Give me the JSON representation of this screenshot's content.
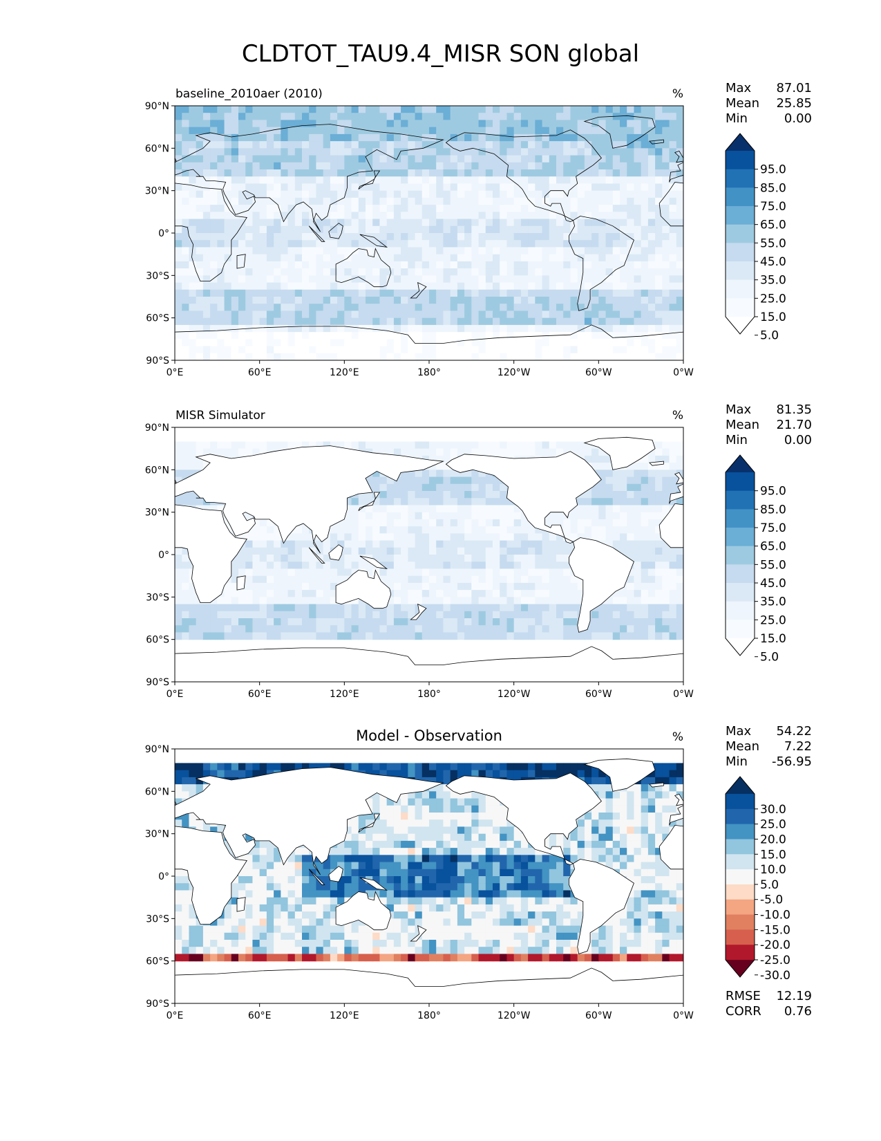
{
  "title": "CLDTOT_TAU9.4_MISR SON global",
  "axes": {
    "lat_ticks": [
      "90°N",
      "60°N",
      "30°N",
      "0°",
      "30°S",
      "60°S",
      "90°S"
    ],
    "lon_ticks": [
      "0°E",
      "60°E",
      "120°E",
      "180°",
      "120°W",
      "60°W",
      "0°W"
    ]
  },
  "chart_data": [
    {
      "type": "heatmap",
      "title": "baseline_2010aer (2010)",
      "units": "%",
      "stats": {
        "labels": [
          "Max",
          "Mean",
          "Min"
        ],
        "values": [
          "87.01",
          "25.85",
          "0.00"
        ]
      },
      "colorbar": {
        "levels": [
          "95.0",
          "85.0",
          "75.0",
          "65.0",
          "55.0",
          "45.0",
          "35.0",
          "25.0",
          "15.0",
          "5.0"
        ],
        "colors": [
          "#08306b",
          "#08519c",
          "#2171b5",
          "#4292c6",
          "#6baed6",
          "#9ecae1",
          "#c6dbef",
          "#dbe9f6",
          "#eef5fc",
          "#f7fbff",
          "#ffffff"
        ]
      },
      "xlim": [
        0,
        360
      ],
      "ylim": [
        -90,
        90
      ]
    },
    {
      "type": "heatmap",
      "title": "MISR Simulator",
      "units": "%",
      "stats": {
        "labels": [
          "Max",
          "Mean",
          "Min"
        ],
        "values": [
          "81.35",
          "21.70",
          "0.00"
        ]
      },
      "colorbar": {
        "levels": [
          "95.0",
          "85.0",
          "75.0",
          "65.0",
          "55.0",
          "45.0",
          "35.0",
          "25.0",
          "15.0",
          "5.0"
        ],
        "colors": [
          "#08306b",
          "#08519c",
          "#2171b5",
          "#4292c6",
          "#6baed6",
          "#9ecae1",
          "#c6dbef",
          "#dbe9f6",
          "#eef5fc",
          "#f7fbff",
          "#ffffff"
        ]
      },
      "xlim": [
        0,
        360
      ],
      "ylim": [
        -90,
        90
      ]
    },
    {
      "type": "heatmap",
      "title": "Model - Observation",
      "units": "%",
      "stats": {
        "labels": [
          "Max",
          "Mean",
          "Min"
        ],
        "values": [
          "54.22",
          "7.22",
          "-56.95"
        ]
      },
      "colorbar": {
        "levels": [
          "30.0",
          "25.0",
          "20.0",
          "15.0",
          "10.0",
          "5.0",
          "-5.0",
          "-10.0",
          "-15.0",
          "-20.0",
          "-25.0",
          "-30.0"
        ],
        "colors": [
          "#053061",
          "#08519c",
          "#2166ac",
          "#4393c3",
          "#92c5de",
          "#d1e5f0",
          "#f7f7f7",
          "#fddbc7",
          "#f4a582",
          "#e08060",
          "#d6604d",
          "#b2182b",
          "#67001f"
        ]
      },
      "extra_stats": {
        "labels": [
          "RMSE",
          "CORR"
        ],
        "values": [
          "12.19",
          "0.76"
        ]
      },
      "xlim": [
        0,
        360
      ],
      "ylim": [
        -90,
        90
      ]
    }
  ]
}
